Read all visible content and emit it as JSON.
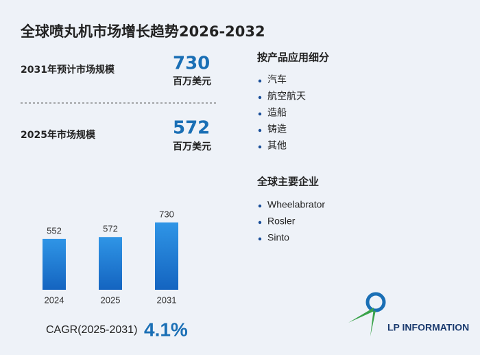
{
  "title": "全球喷丸机市场增长趋势2026-2032",
  "stats": [
    {
      "label": "2031年预计市场规模",
      "value": 730,
      "unit": "百万美元"
    },
    {
      "label": "2025年市场规模",
      "value": 572,
      "unit": "百万美元"
    }
  ],
  "chart_data": {
    "type": "bar",
    "categories": [
      "2024",
      "2025",
      "2031"
    ],
    "values": [
      552,
      572,
      730
    ],
    "color": "#1f7fd6"
  },
  "cagr": {
    "label": "CAGR(2025-2031)",
    "value": "4.1%"
  },
  "segments": {
    "title": "按产品应用细分",
    "items": [
      "汽车",
      "航空航天",
      "造船",
      "铸造",
      "其他"
    ]
  },
  "companies": {
    "title": "全球主要企业",
    "items": [
      "Wheelabrator",
      "Rosler",
      "Sinto"
    ]
  },
  "logo": "LP INFORMATION"
}
